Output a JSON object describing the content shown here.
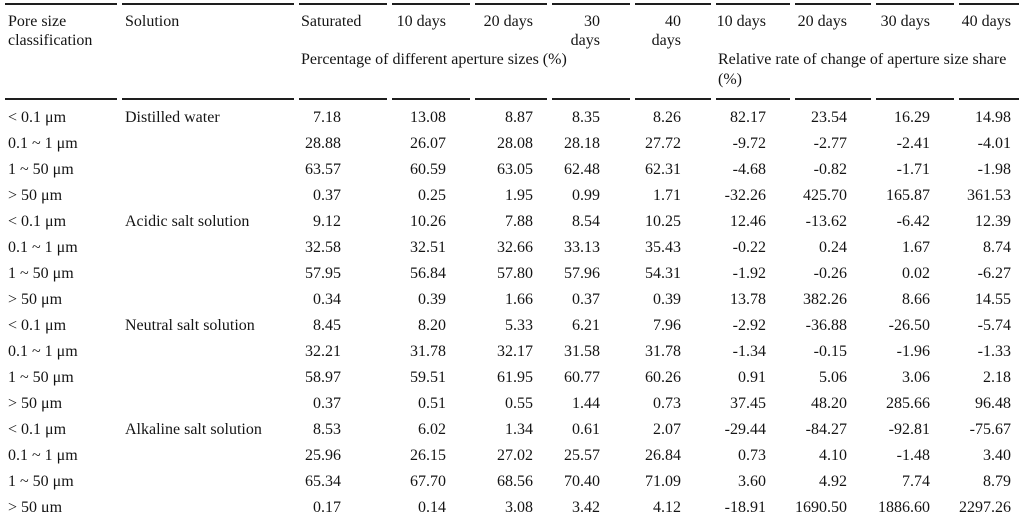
{
  "colors": {
    "text": "#141414",
    "rule": "#1e1e1e",
    "background": "#ffffff"
  },
  "table": {
    "header": {
      "pore_size": "Pore size classification",
      "solution": "Solution",
      "value_cols": [
        "Saturated",
        "10 days",
        "20 days",
        "30 days",
        "40 days",
        "10 days",
        "20 days",
        "30 days",
        "40 days"
      ],
      "spanner_percentage": "Percentage of different aperture sizes (%)",
      "spanner_relative": "Relative rate of change of aperture size share (%)"
    },
    "groups": [
      {
        "solution": "Distilled water",
        "rows": [
          {
            "pore": "< 0.1 μm",
            "values": [
              "7.18",
              "13.08",
              "8.87",
              "8.35",
              "8.26",
              "82.17",
              "23.54",
              "16.29",
              "14.98"
            ]
          },
          {
            "pore": "0.1 ~ 1 μm",
            "values": [
              "28.88",
              "26.07",
              "28.08",
              "28.18",
              "27.72",
              "-9.72",
              "-2.77",
              "-2.41",
              "-4.01"
            ]
          },
          {
            "pore": "1 ~ 50 μm",
            "values": [
              "63.57",
              "60.59",
              "63.05",
              "62.48",
              "62.31",
              "-4.68",
              "-0.82",
              "-1.71",
              "-1.98"
            ]
          },
          {
            "pore": "> 50 μm",
            "values": [
              "0.37",
              "0.25",
              "1.95",
              "0.99",
              "1.71",
              "-32.26",
              "425.70",
              "165.87",
              "361.53"
            ]
          }
        ]
      },
      {
        "solution": "Acidic salt solution",
        "rows": [
          {
            "pore": "< 0.1 μm",
            "values": [
              "9.12",
              "10.26",
              "7.88",
              "8.54",
              "10.25",
              "12.46",
              "-13.62",
              "-6.42",
              "12.39"
            ]
          },
          {
            "pore": "0.1 ~ 1 μm",
            "values": [
              "32.58",
              "32.51",
              "32.66",
              "33.13",
              "35.43",
              "-0.22",
              "0.24",
              "1.67",
              "8.74"
            ]
          },
          {
            "pore": "1 ~ 50 μm",
            "values": [
              "57.95",
              "56.84",
              "57.80",
              "57.96",
              "54.31",
              "-1.92",
              "-0.26",
              "0.02",
              "-6.27"
            ]
          },
          {
            "pore": "> 50 μm",
            "values": [
              "0.34",
              "0.39",
              "1.66",
              "0.37",
              "0.39",
              "13.78",
              "382.26",
              "8.66",
              "14.55"
            ]
          }
        ]
      },
      {
        "solution": "Neutral salt solution",
        "rows": [
          {
            "pore": "< 0.1 μm",
            "values": [
              "8.45",
              "8.20",
              "5.33",
              "6.21",
              "7.96",
              "-2.92",
              "-36.88",
              "-26.50",
              "-5.74"
            ]
          },
          {
            "pore": "0.1 ~ 1 μm",
            "values": [
              "32.21",
              "31.78",
              "32.17",
              "31.58",
              "31.78",
              "-1.34",
              "-0.15",
              "-1.96",
              "-1.33"
            ]
          },
          {
            "pore": "1 ~ 50 μm",
            "values": [
              "58.97",
              "59.51",
              "61.95",
              "60.77",
              "60.26",
              "0.91",
              "5.06",
              "3.06",
              "2.18"
            ]
          },
          {
            "pore": "> 50 μm",
            "values": [
              "0.37",
              "0.51",
              "0.55",
              "1.44",
              "0.73",
              "37.45",
              "48.20",
              "285.66",
              "96.48"
            ]
          }
        ]
      },
      {
        "solution": "Alkaline salt solution",
        "rows": [
          {
            "pore": "< 0.1 μm",
            "values": [
              "8.53",
              "6.02",
              "1.34",
              "0.61",
              "2.07",
              "-29.44",
              "-84.27",
              "-92.81",
              "-75.67"
            ]
          },
          {
            "pore": "0.1 ~ 1 μm",
            "values": [
              "25.96",
              "26.15",
              "27.02",
              "25.57",
              "26.84",
              "0.73",
              "4.10",
              "-1.48",
              "3.40"
            ]
          },
          {
            "pore": "1 ~ 50 μm",
            "values": [
              "65.34",
              "67.70",
              "68.56",
              "70.40",
              "71.09",
              "3.60",
              "4.92",
              "7.74",
              "8.79"
            ]
          },
          {
            "pore": "> 50 μm",
            "values": [
              "0.17",
              "0.14",
              "3.08",
              "3.42",
              "4.12",
              "-18.91",
              "1690.50",
              "1886.60",
              "2297.26"
            ]
          }
        ]
      }
    ]
  }
}
